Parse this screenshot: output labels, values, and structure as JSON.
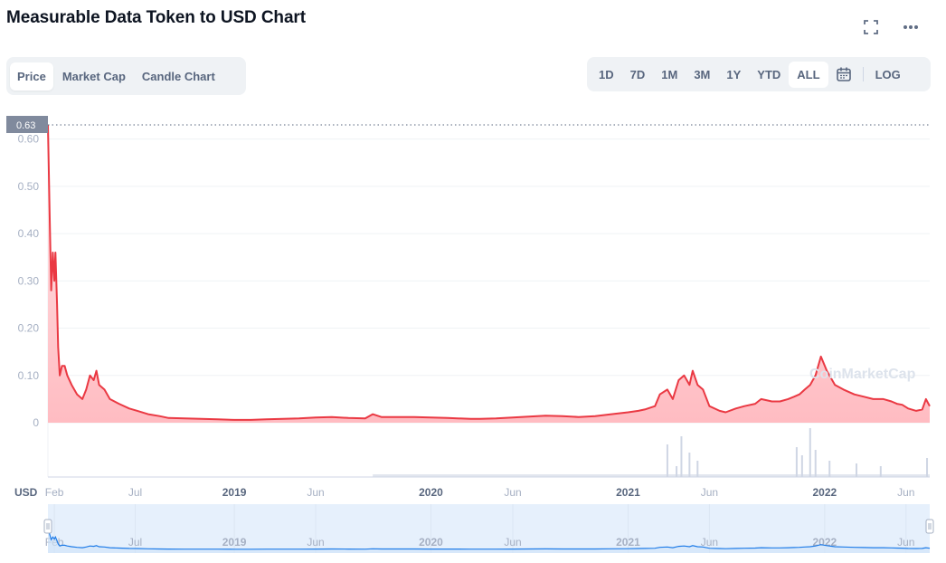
{
  "header": {
    "title": "Measurable Data Token to USD Chart",
    "fullscreen_icon": "fullscreen-icon",
    "more_icon": "more-icon"
  },
  "tabs": [
    {
      "label": "Price",
      "active": true
    },
    {
      "label": "Market Cap",
      "active": false
    },
    {
      "label": "Candle Chart",
      "active": false
    }
  ],
  "ranges": [
    {
      "label": "1D",
      "active": false
    },
    {
      "label": "7D",
      "active": false
    },
    {
      "label": "1M",
      "active": false
    },
    {
      "label": "3M",
      "active": false
    },
    {
      "label": "1Y",
      "active": false
    },
    {
      "label": "YTD",
      "active": false
    },
    {
      "label": "ALL",
      "active": true
    }
  ],
  "calendar_icon": "calendar-icon",
  "log_label": "LOG",
  "watermark": "CoinMarketCap",
  "colors": {
    "line": "#ea3943",
    "area_top": "#ffe4e6",
    "area_bottom": "#ffbcc2",
    "volume": "#cfd6e4",
    "navigator_fill": "#e6f0fc",
    "navigator_line": "#1f7ce8",
    "grid": "#eff2f5",
    "axis_text": "#a6b0c3"
  },
  "chart_data": {
    "type": "line",
    "currency_label": "USD",
    "max_label": "0.63",
    "ylim": [
      0,
      0.63
    ],
    "y_ticks": [
      "0",
      "0.10",
      "0.20",
      "0.30",
      "0.40",
      "0.50",
      "0.60"
    ],
    "x_ticks": [
      {
        "label": "Feb",
        "date": "2018-02-01",
        "bold": false
      },
      {
        "label": "Jul",
        "date": "2018-07-01",
        "bold": false
      },
      {
        "label": "2019",
        "date": "2019-01-01",
        "bold": true
      },
      {
        "label": "Jun",
        "date": "2019-06-01",
        "bold": false
      },
      {
        "label": "2020",
        "date": "2020-01-01",
        "bold": true
      },
      {
        "label": "Jun",
        "date": "2020-06-01",
        "bold": false
      },
      {
        "label": "2021",
        "date": "2021-01-01",
        "bold": true
      },
      {
        "label": "Jun",
        "date": "2021-06-01",
        "bold": false
      },
      {
        "label": "2022",
        "date": "2022-01-01",
        "bold": true
      },
      {
        "label": "Jun",
        "date": "2022-06-01",
        "bold": false
      }
    ],
    "xlim": [
      "2018-01-20",
      "2022-07-15"
    ],
    "series": [
      {
        "x": [
          "2018-01-20",
          "2018-01-23",
          "2018-01-26",
          "2018-01-29",
          "2018-02-01",
          "2018-02-03",
          "2018-02-06",
          "2018-02-08",
          "2018-02-11",
          "2018-02-15",
          "2018-02-20",
          "2018-02-25",
          "2018-03-05",
          "2018-03-15",
          "2018-03-25",
          "2018-04-01",
          "2018-04-08",
          "2018-04-15",
          "2018-04-20",
          "2018-04-25",
          "2018-05-05",
          "2018-05-15",
          "2018-06-01",
          "2018-06-20",
          "2018-07-05",
          "2018-07-25",
          "2018-08-15",
          "2018-09-01",
          "2018-10-01",
          "2018-11-01",
          "2018-12-01",
          "2019-01-01",
          "2019-02-01",
          "2019-03-01",
          "2019-04-01",
          "2019-05-01",
          "2019-06-01",
          "2019-07-01",
          "2019-08-01",
          "2019-09-01",
          "2019-09-15",
          "2019-10-01",
          "2019-11-01",
          "2019-12-01",
          "2020-01-01",
          "2020-02-01",
          "2020-03-15",
          "2020-04-01",
          "2020-05-01",
          "2020-06-01",
          "2020-07-01",
          "2020-08-01",
          "2020-09-01",
          "2020-10-01",
          "2020-11-01",
          "2020-12-01",
          "2021-01-01",
          "2021-01-20",
          "2021-02-01",
          "2021-02-20",
          "2021-03-01",
          "2021-03-15",
          "2021-03-25",
          "2021-04-05",
          "2021-04-15",
          "2021-04-25",
          "2021-05-01",
          "2021-05-10",
          "2021-05-20",
          "2021-06-01",
          "2021-06-20",
          "2021-07-01",
          "2021-07-20",
          "2021-08-05",
          "2021-08-25",
          "2021-09-05",
          "2021-09-25",
          "2021-10-10",
          "2021-10-25",
          "2021-11-05",
          "2021-11-15",
          "2021-11-25",
          "2021-12-05",
          "2021-12-15",
          "2021-12-25",
          "2022-01-05",
          "2022-01-20",
          "2022-02-05",
          "2022-02-25",
          "2022-03-15",
          "2022-04-01",
          "2022-04-20",
          "2022-05-05",
          "2022-05-15",
          "2022-05-25",
          "2022-06-05",
          "2022-06-20",
          "2022-07-01",
          "2022-07-08",
          "2022-07-15"
        ],
        "values": [
          0.63,
          0.45,
          0.28,
          0.36,
          0.3,
          0.36,
          0.25,
          0.16,
          0.1,
          0.12,
          0.12,
          0.1,
          0.08,
          0.06,
          0.05,
          0.07,
          0.1,
          0.09,
          0.11,
          0.08,
          0.07,
          0.05,
          0.04,
          0.03,
          0.025,
          0.018,
          0.014,
          0.01,
          0.009,
          0.008,
          0.007,
          0.006,
          0.006,
          0.007,
          0.008,
          0.009,
          0.011,
          0.012,
          0.01,
          0.009,
          0.018,
          0.012,
          0.012,
          0.012,
          0.011,
          0.01,
          0.008,
          0.008,
          0.009,
          0.011,
          0.013,
          0.015,
          0.014,
          0.012,
          0.014,
          0.018,
          0.022,
          0.025,
          0.028,
          0.035,
          0.06,
          0.07,
          0.05,
          0.09,
          0.1,
          0.08,
          0.11,
          0.08,
          0.07,
          0.035,
          0.025,
          0.022,
          0.03,
          0.035,
          0.04,
          0.05,
          0.045,
          0.045,
          0.05,
          0.055,
          0.06,
          0.07,
          0.08,
          0.1,
          0.14,
          0.11,
          0.08,
          0.07,
          0.06,
          0.055,
          0.05,
          0.05,
          0.045,
          0.04,
          0.038,
          0.03,
          0.025,
          0.028,
          0.05,
          0.035
        ]
      }
    ],
    "volume_spikes": [
      {
        "date": "2021-03-15",
        "value": 0.6
      },
      {
        "date": "2021-04-01",
        "value": 0.2
      },
      {
        "date": "2021-04-10",
        "value": 0.75
      },
      {
        "date": "2021-04-25",
        "value": 0.45
      },
      {
        "date": "2021-05-10",
        "value": 0.3
      },
      {
        "date": "2021-11-10",
        "value": 0.55
      },
      {
        "date": "2021-11-20",
        "value": 0.4
      },
      {
        "date": "2021-12-05",
        "value": 0.9
      },
      {
        "date": "2021-12-15",
        "value": 0.5
      },
      {
        "date": "2022-01-10",
        "value": 0.3
      },
      {
        "date": "2022-03-01",
        "value": 0.25
      },
      {
        "date": "2022-04-15",
        "value": 0.2
      },
      {
        "date": "2022-07-10",
        "value": 0.35
      }
    ]
  }
}
